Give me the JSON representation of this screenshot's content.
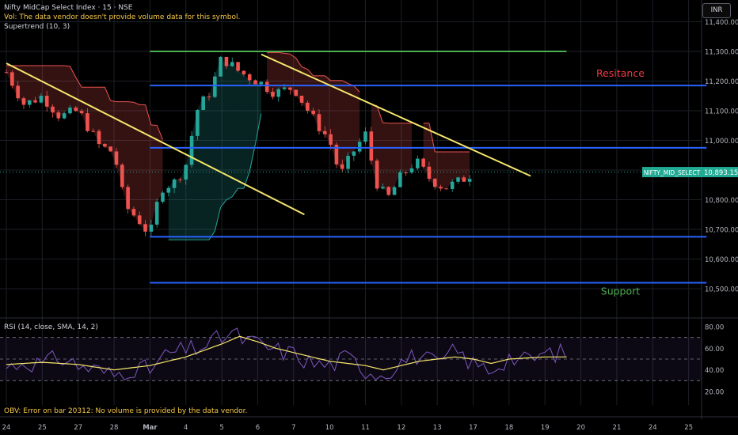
{
  "legend": {
    "title": "Nifty MidCap Select Index · 15 · NSE",
    "volume_note": "Vol: The data vendor doesn't provide volume data for this symbol.",
    "supertrend": "Supertrend (10, 3)"
  },
  "currency_label": "INR",
  "rsi_legend": "RSI (14, close, SMA, 14, 2)",
  "obv_legend": "OBV: Error on bar 20312: No volume is provided by the data vendor.",
  "colors": {
    "background": "#000000",
    "grid": "#1c1f26",
    "up_candle": "#26a69a",
    "down_candle": "#ef5350",
    "trendline": "#f5e66b",
    "level_blue": "#2962ff",
    "level_green": "#4caf50",
    "resistance_text": "#f23645",
    "support_text": "#4caf50",
    "rsi": "#7e57c2",
    "rsi_ma": "#f5e66b",
    "price_tag": "#22ab94"
  },
  "chart_data": [
    {
      "type": "candlestick",
      "symbol": "NIFTY_MID_SELECT",
      "last_price": 10893.15,
      "last_price_label": "10,893.15",
      "symbol_tag": "NIFTY_MID_SELECT",
      "y_ticks": [
        "11,400.00",
        "11,300.00",
        "11,200.00",
        "11,100.00",
        "11,000.00",
        "10,900.00",
        "10,800.00",
        "10,700.00",
        "10,600.00",
        "10,500.00"
      ],
      "y_tick_values": [
        11400,
        11300,
        11200,
        11100,
        11000,
        10900,
        10800,
        10700,
        10600,
        10500
      ],
      "ylim": [
        10420,
        11450
      ],
      "x_ticks": [
        "24",
        "25",
        "27",
        "28",
        "Mar",
        "4",
        "5",
        "6",
        "7",
        "10",
        "11",
        "12",
        "13",
        "17",
        "18",
        "19",
        "20",
        "21",
        "24",
        "25"
      ],
      "close_path": [
        {
          "day": 0,
          "close": 11230
        },
        {
          "day": 0.5,
          "close": 11120
        },
        {
          "day": 1,
          "close": 11150
        },
        {
          "day": 1.5,
          "close": 11080
        },
        {
          "day": 2,
          "close": 11100
        },
        {
          "day": 2.6,
          "close": 10980
        },
        {
          "day": 3,
          "close": 10960
        },
        {
          "day": 3.3,
          "close": 10780
        },
        {
          "day": 3.7,
          "close": 10730
        },
        {
          "day": 4,
          "close": 10680
        },
        {
          "day": 4.3,
          "close": 10840
        },
        {
          "day": 4.7,
          "close": 10860
        },
        {
          "day": 5,
          "close": 10920
        },
        {
          "day": 5.3,
          "close": 11100
        },
        {
          "day": 5.7,
          "close": 11170
        },
        {
          "day": 6,
          "close": 11280
        },
        {
          "day": 6.5,
          "close": 11230
        },
        {
          "day": 7,
          "close": 11200
        },
        {
          "day": 7.5,
          "close": 11160
        },
        {
          "day": 8,
          "close": 11180
        },
        {
          "day": 8.5,
          "close": 11080
        },
        {
          "day": 9,
          "close": 11000
        },
        {
          "day": 9.3,
          "close": 10880
        },
        {
          "day": 9.7,
          "close": 10970
        },
        {
          "day": 10,
          "close": 11020
        },
        {
          "day": 10.3,
          "close": 10860
        },
        {
          "day": 10.6,
          "close": 10800
        },
        {
          "day": 11,
          "close": 10880
        },
        {
          "day": 11.4,
          "close": 10930
        },
        {
          "day": 11.8,
          "close": 10870
        },
        {
          "day": 12.2,
          "close": 10840
        },
        {
          "day": 12.6,
          "close": 10860
        },
        {
          "day": 13,
          "close": 10893
        }
      ],
      "horizontal_levels": [
        {
          "name": "level-11300",
          "price": 11300,
          "color": "#4caf50",
          "from_day": 4,
          "to_day": 15.6
        },
        {
          "name": "level-11185",
          "price": 11185,
          "color": "#2962ff",
          "from_day": 4,
          "to_day": 19.5
        },
        {
          "name": "level-10975",
          "price": 10975,
          "color": "#2962ff",
          "from_day": 4,
          "to_day": 19.5
        },
        {
          "name": "level-10675",
          "price": 10675,
          "color": "#2962ff",
          "from_day": 4,
          "to_day": 19.5
        },
        {
          "name": "level-10520",
          "price": 10520,
          "color": "#2962ff",
          "from_day": 4,
          "to_day": 19.5
        }
      ],
      "trendlines": [
        {
          "name": "trendline-1",
          "from": {
            "day": 0,
            "price": 11260
          },
          "to": {
            "day": 8.3,
            "price": 10750
          }
        },
        {
          "name": "trendline-2",
          "from": {
            "day": 7.1,
            "price": 11290
          },
          "to": {
            "day": 14.6,
            "price": 10880
          }
        }
      ],
      "annotations": [
        {
          "name": "resistance-label",
          "text": "Resitance",
          "day": 17.1,
          "price": 11215,
          "color": "#f23645"
        },
        {
          "name": "support-label",
          "text": "Support",
          "day": 17.1,
          "price": 10480,
          "color": "#4caf50"
        }
      ]
    },
    {
      "type": "line",
      "title": "RSI (14, close, SMA, 14, 2)",
      "y_ticks": [
        "80.00",
        "60.00",
        "40.00",
        "20.00"
      ],
      "y_tick_values": [
        80,
        60,
        40,
        20
      ],
      "ylim": [
        12,
        86
      ],
      "bands": {
        "upper": 70,
        "middle": 50,
        "lower": 30
      },
      "series": [
        {
          "name": "RSI",
          "points": [
            [
              0,
              42
            ],
            [
              0.5,
              48
            ],
            [
              1,
              45
            ],
            [
              1.5,
              52
            ],
            [
              2,
              44
            ],
            [
              2.5,
              40
            ],
            [
              3,
              35
            ],
            [
              3.5,
              42
            ],
            [
              4,
              40
            ],
            [
              4.5,
              55
            ],
            [
              5,
              58
            ],
            [
              5.5,
              62
            ],
            [
              6,
              70
            ],
            [
              6.3,
              74
            ],
            [
              6.6,
              68
            ],
            [
              7,
              64
            ],
            [
              7.5,
              58
            ],
            [
              8,
              55
            ],
            [
              8.5,
              46
            ],
            [
              9,
              44
            ],
            [
              9.5,
              52
            ],
            [
              10,
              40
            ],
            [
              10.5,
              36
            ],
            [
              11,
              48
            ],
            [
              11.5,
              54
            ],
            [
              12,
              44
            ],
            [
              12.5,
              58
            ],
            [
              13,
              45
            ],
            [
              13.5,
              40
            ],
            [
              14,
              52
            ],
            [
              14.5,
              48
            ],
            [
              15,
              55
            ],
            [
              15.6,
              56
            ]
          ]
        },
        {
          "name": "RSI-based MA",
          "points": [
            [
              0,
              45
            ],
            [
              1,
              47
            ],
            [
              2,
              45
            ],
            [
              3,
              40
            ],
            [
              4,
              44
            ],
            [
              5,
              52
            ],
            [
              6,
              64
            ],
            [
              6.5,
              71
            ],
            [
              7,
              66
            ],
            [
              7.5,
              60
            ],
            [
              8,
              56
            ],
            [
              8.5,
              52
            ],
            [
              9,
              48
            ],
            [
              10,
              44
            ],
            [
              10.5,
              40
            ],
            [
              11,
              44
            ],
            [
              11.5,
              48
            ],
            [
              12,
              50
            ],
            [
              12.5,
              52
            ],
            [
              13,
              50
            ],
            [
              13.5,
              46
            ],
            [
              14,
              50
            ],
            [
              14.5,
              51
            ],
            [
              15,
              52
            ],
            [
              15.6,
              52
            ]
          ]
        }
      ]
    }
  ]
}
